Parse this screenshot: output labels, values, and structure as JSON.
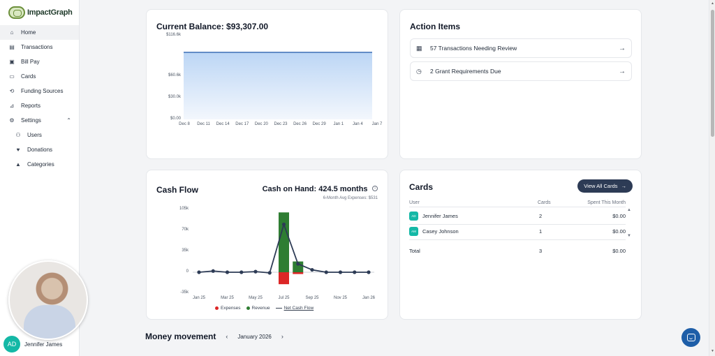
{
  "app": {
    "logo_text": "ImpactGraph"
  },
  "sidebar": {
    "items": [
      {
        "label": "Home",
        "icon": "home-icon",
        "active": true
      },
      {
        "label": "Transactions",
        "icon": "list-icon"
      },
      {
        "label": "Bill Pay",
        "icon": "invoice-icon"
      },
      {
        "label": "Cards",
        "icon": "card-icon"
      },
      {
        "label": "Funding Sources",
        "icon": "funding-icon"
      },
      {
        "label": "Reports",
        "icon": "reports-icon"
      },
      {
        "label": "Settings",
        "icon": "gear-icon"
      },
      {
        "label": "Users",
        "icon": "users-icon"
      },
      {
        "label": "Donations",
        "icon": "donations-icon"
      },
      {
        "label": "Categories",
        "icon": "categories-icon"
      }
    ]
  },
  "user": {
    "initials": "AD",
    "name": "Jennifer James"
  },
  "balance": {
    "title": "Current Balance: $93,307.00",
    "y_ticks": [
      "$116.6k",
      "$60.6k",
      "$30.0k",
      "$0.00"
    ],
    "x_ticks": [
      "Dec 8",
      "Dec 11",
      "Dec 14",
      "Dec 17",
      "Dec 20",
      "Dec 23",
      "Dec 26",
      "Dec 29",
      "Jan 1",
      "Jan 4",
      "Jan 7"
    ]
  },
  "action_items": {
    "title": "Action Items",
    "items": [
      {
        "label": "57 Transactions Needing Review",
        "icon": "clipboard-icon"
      },
      {
        "label": "2 Grant Requirements Due",
        "icon": "clock-icon"
      }
    ]
  },
  "cash_flow": {
    "title": "Cash Flow",
    "cash_on_hand": "Cash on Hand: 424.5 months",
    "avg_expenses": "6-Month Avg Expenses: $531",
    "y_ticks": [
      "105k",
      "70k",
      "35k",
      "0",
      "-35k"
    ],
    "x_ticks": [
      "Jan 25",
      "Mar 25",
      "May 25",
      "Jul 25",
      "Sep 25",
      "Nov 25",
      "Jan 26"
    ],
    "legend": {
      "expenses": "Expenses",
      "revenue": "Revenue",
      "net": "Net Cash Flow"
    },
    "colors": {
      "expenses": "#dc2626",
      "revenue": "#2e7d32",
      "net": "#2d3b55"
    }
  },
  "chart_data": [
    {
      "type": "area",
      "title": "Current Balance: $93,307.00",
      "x": [
        "Dec 8",
        "Dec 11",
        "Dec 14",
        "Dec 17",
        "Dec 20",
        "Dec 23",
        "Dec 26",
        "Dec 29",
        "Jan 1",
        "Jan 4",
        "Jan 7"
      ],
      "values": [
        93307,
        93307,
        93307,
        93307,
        93307,
        93307,
        93307,
        93307,
        93307,
        93307,
        93307
      ],
      "ylim": [
        0,
        116600
      ]
    },
    {
      "type": "bar",
      "title": "Cash Flow",
      "categories": [
        "Jan 25",
        "Feb 25",
        "Mar 25",
        "Apr 25",
        "May 25",
        "Jun 25",
        "Jul 25",
        "Aug 25",
        "Sep 25",
        "Oct 25",
        "Nov 25",
        "Dec 25",
        "Jan 26"
      ],
      "series": [
        {
          "name": "Revenue",
          "values": [
            0,
            0,
            0,
            0,
            0,
            0,
            100000,
            18000,
            0,
            0,
            0,
            0,
            0
          ]
        },
        {
          "name": "Expenses",
          "values": [
            0,
            0,
            0,
            0,
            0,
            0,
            -20000,
            -3000,
            0,
            0,
            0,
            0,
            0
          ]
        },
        {
          "name": "Net Cash Flow",
          "values": [
            0,
            2000,
            0,
            0,
            1000,
            -1000,
            80000,
            14000,
            4000,
            0,
            0,
            0,
            0
          ]
        }
      ],
      "ylim": [
        -35000,
        105000
      ]
    }
  ],
  "cards": {
    "title": "Cards",
    "view_all": "View All Cards",
    "headers": {
      "user": "User",
      "cards": "Cards",
      "spent": "Spent This Month"
    },
    "rows": [
      {
        "initials": "AD",
        "name": "Jennifer James",
        "cards": "2",
        "spent": "$0.00"
      },
      {
        "initials": "AM",
        "name": "Casey Johnson",
        "cards": "1",
        "spent": "$0.00"
      }
    ],
    "total": {
      "label": "Total",
      "cards": "3",
      "spent": "$0.00"
    }
  },
  "money_movement": {
    "title": "Money movement",
    "month": "January 2026"
  }
}
